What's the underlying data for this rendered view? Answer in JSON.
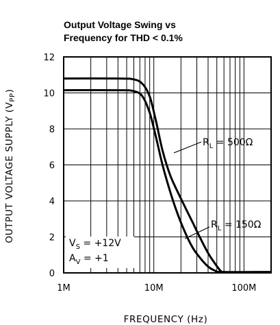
{
  "chart_data": {
    "type": "line",
    "title": [
      "Output Voltage Swing vs",
      "Frequency for THD < 0.1%"
    ],
    "xlabel": "FREQUENCY (Hz)",
    "ylabel": {
      "main": "OUTPUT VOLTAGE SUPPLY (V",
      "sub": "PP",
      "close": ")"
    },
    "x_scale": "log",
    "xlim": [
      1000000,
      200000000
    ],
    "ylim": [
      0,
      12
    ],
    "x_ticks": [
      {
        "value": 1000000,
        "label": "1M"
      },
      {
        "value": 10000000,
        "label": "10M"
      },
      {
        "value": 100000000,
        "label": "100M"
      }
    ],
    "y_ticks": [
      0,
      2,
      4,
      6,
      8,
      10,
      12
    ],
    "grid": true,
    "series": [
      {
        "label_main": "R",
        "label_sub": "L",
        "label_rest": " = 500Ω",
        "points": [
          [
            1000000,
            10.8
          ],
          [
            4000000,
            10.8
          ],
          [
            6000000,
            10.75
          ],
          [
            7500000,
            10.5
          ],
          [
            9000000,
            9.8
          ],
          [
            10500000,
            8.5
          ],
          [
            12500000,
            6.8
          ],
          [
            15000000,
            5.5
          ],
          [
            18000000,
            4.6
          ],
          [
            22000000,
            3.7
          ],
          [
            27000000,
            2.8
          ],
          [
            33000000,
            1.9
          ],
          [
            40000000,
            1.1
          ],
          [
            48000000,
            0.5
          ],
          [
            55000000,
            0.12
          ],
          [
            60000000,
            0.05
          ],
          [
            200000000,
            0.05
          ]
        ]
      },
      {
        "label_main": "R",
        "label_sub": "L",
        "label_rest": " = 150Ω",
        "points": [
          [
            1000000,
            10.15
          ],
          [
            4000000,
            10.15
          ],
          [
            6000000,
            10.1
          ],
          [
            7500000,
            9.8
          ],
          [
            9000000,
            8.9
          ],
          [
            10500000,
            7.6
          ],
          [
            12500000,
            6.0
          ],
          [
            15000000,
            4.6
          ],
          [
            18000000,
            3.4
          ],
          [
            22000000,
            2.3
          ],
          [
            27000000,
            1.4
          ],
          [
            33000000,
            0.8
          ],
          [
            40000000,
            0.35
          ],
          [
            48000000,
            0.12
          ],
          [
            57000000,
            0.05
          ],
          [
            200000000,
            0.05
          ]
        ]
      }
    ],
    "conditions": [
      {
        "main": "V",
        "sub": "S",
        "rest": " = +12V"
      },
      {
        "main": "A",
        "sub": "V",
        "rest": " = +1"
      }
    ]
  }
}
